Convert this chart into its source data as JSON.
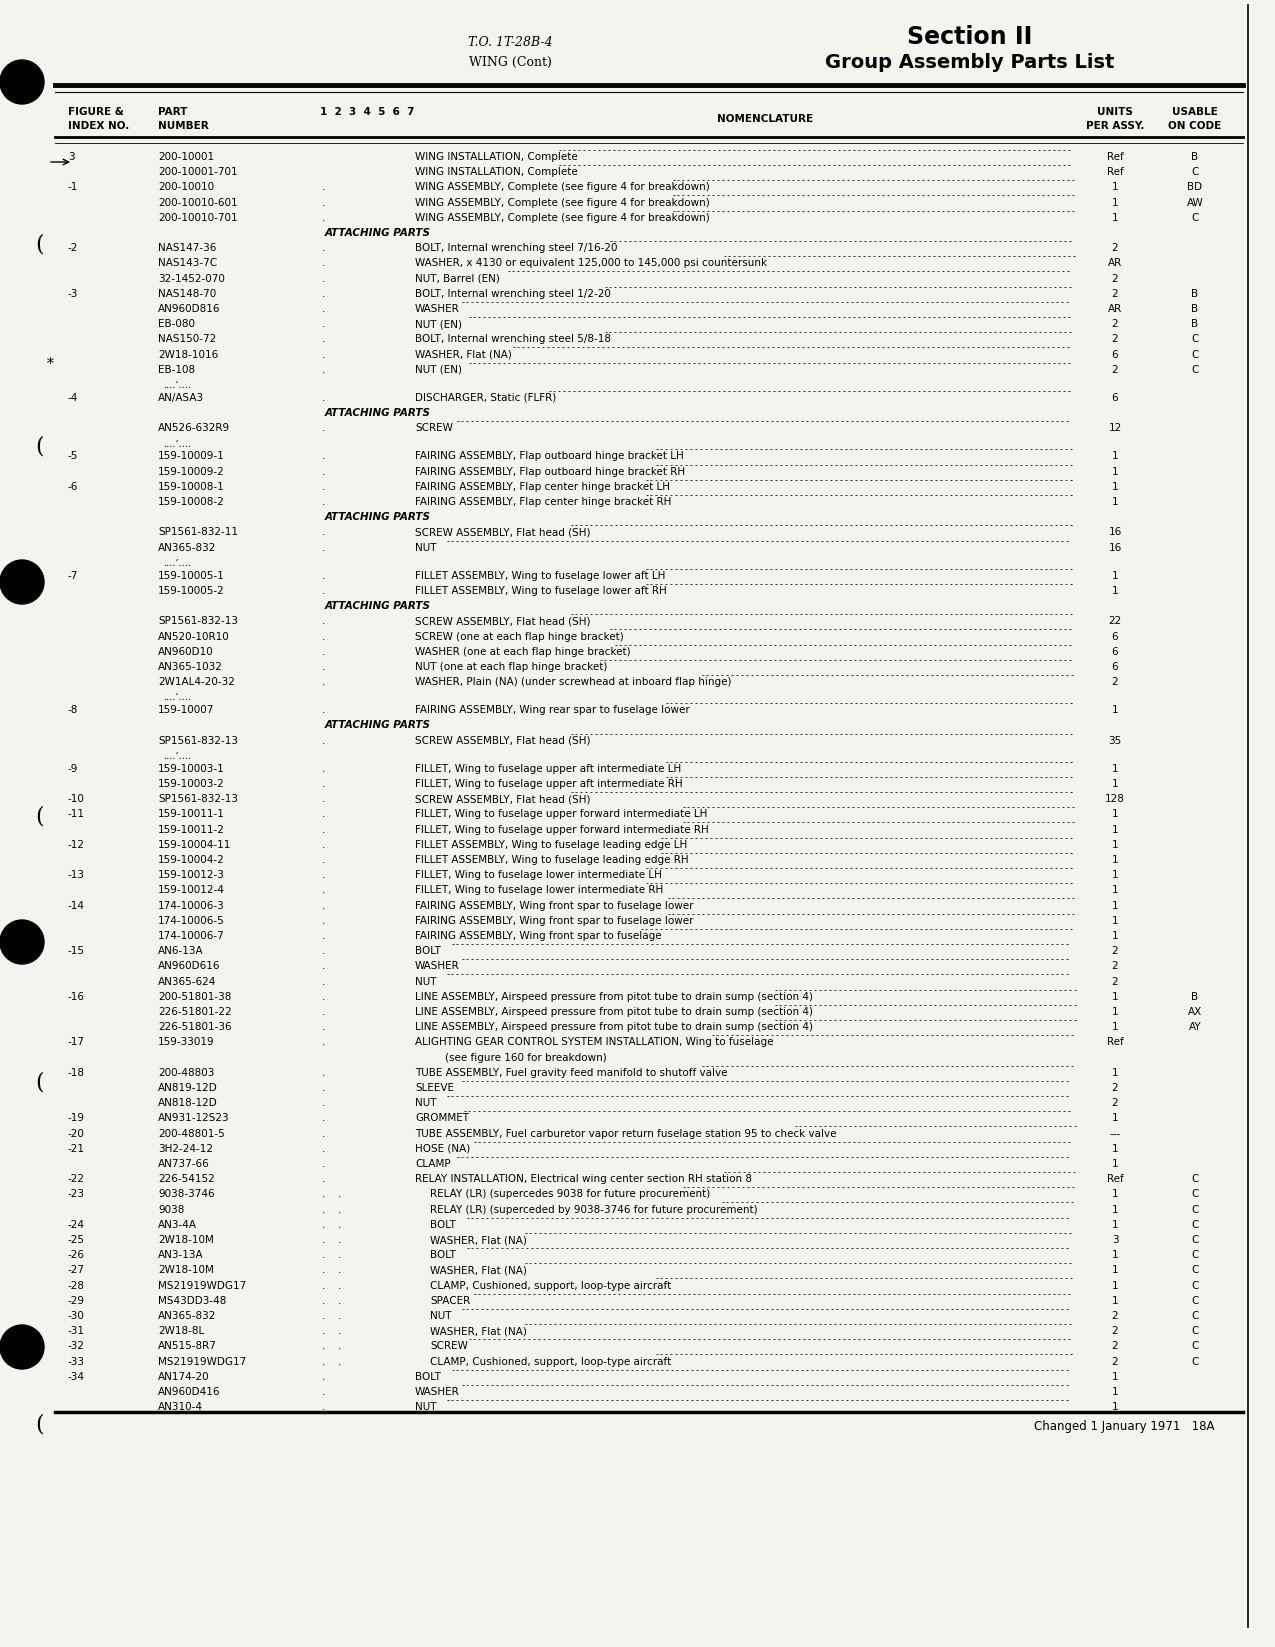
{
  "bg_color": "#f4f4ef",
  "header_to": "T.O. 1T-28B-4",
  "header_wing": "WING (Cont)",
  "header_section": "Section II",
  "header_group": "Group Assembly Parts List",
  "footer_text": "Changed 1 January 1971   18A",
  "rows": [
    {
      "fig": "3",
      "part": "200-10001",
      "ind": 0,
      "nom": "WING INSTALLATION, Complete",
      "units": "Ref",
      "code": "B",
      "type": "data"
    },
    {
      "fig": "",
      "part": "200-10001-701",
      "ind": 0,
      "nom": "WING INSTALLATION, Complete",
      "units": "Ref",
      "code": "C",
      "type": "data"
    },
    {
      "fig": "-1",
      "part": "200-10010",
      "ind": 1,
      "nom": "WING ASSEMBLY, Complete (see figure 4 for breakdown)",
      "units": "1",
      "code": "BD",
      "type": "data"
    },
    {
      "fig": "",
      "part": "200-10010-601",
      "ind": 1,
      "nom": "WING ASSEMBLY, Complete (see figure 4 for breakdown)",
      "units": "1",
      "code": "AW",
      "type": "data"
    },
    {
      "fig": "",
      "part": "200-10010-701",
      "ind": 1,
      "nom": "WING ASSEMBLY, Complete (see figure 4 for breakdown)",
      "units": "1",
      "code": "C",
      "type": "data"
    },
    {
      "fig": "",
      "part": "",
      "ind": 0,
      "nom": "ATTACHING PARTS",
      "units": "",
      "code": "",
      "type": "ap"
    },
    {
      "fig": "-2",
      "part": "NAS147-36",
      "ind": 1,
      "nom": "BOLT, Internal wrenching steel 7/16-20",
      "units": "2",
      "code": "",
      "type": "data"
    },
    {
      "fig": "",
      "part": "NAS143-7C",
      "ind": 1,
      "nom": "WASHER, x 4130 or equivalent 125,000 to 145,000 psi countersunk",
      "units": "AR",
      "code": "",
      "type": "data"
    },
    {
      "fig": "",
      "part": "32-1452-070",
      "ind": 1,
      "nom": "NUT, Barrel (EN)",
      "units": "2",
      "code": "",
      "type": "data"
    },
    {
      "fig": "-3",
      "part": "NAS148-70",
      "ind": 1,
      "nom": "BOLT, Internal wrenching steel 1/2-20",
      "units": "2",
      "code": "B",
      "type": "data"
    },
    {
      "fig": "",
      "part": "AN960D816",
      "ind": 1,
      "nom": "WASHER",
      "units": "AR",
      "code": "B",
      "type": "data"
    },
    {
      "fig": "",
      "part": "EB-080",
      "ind": 1,
      "nom": "NUT (EN)",
      "units": "2",
      "code": "B",
      "type": "data"
    },
    {
      "fig": "",
      "part": "NAS150-72",
      "ind": 1,
      "nom": "BOLT, Internal wrenching steel 5/8-18",
      "units": "2",
      "code": "C",
      "type": "data"
    },
    {
      "fig": "",
      "part": "2W18-1016",
      "ind": 1,
      "nom": "WASHER, Flat (NA)",
      "units": "6",
      "code": "C",
      "type": "data"
    },
    {
      "fig": "",
      "part": "EB-108",
      "ind": 1,
      "nom": "NUT (EN)",
      "units": "2",
      "code": "C",
      "type": "data"
    },
    {
      "fig": "",
      "part": "",
      "ind": 0,
      "nom": "",
      "units": "",
      "code": "",
      "type": "sep"
    },
    {
      "fig": "-4",
      "part": "AN/ASA3",
      "ind": 1,
      "nom": "DISCHARGER, Static (FLFR)",
      "units": "6",
      "code": "",
      "type": "data"
    },
    {
      "fig": "",
      "part": "",
      "ind": 0,
      "nom": "ATTACHING PARTS",
      "units": "",
      "code": "",
      "type": "ap"
    },
    {
      "fig": "",
      "part": "AN526-632R9",
      "ind": 1,
      "nom": "SCREW",
      "units": "12",
      "code": "",
      "type": "data"
    },
    {
      "fig": "",
      "part": "",
      "ind": 0,
      "nom": "",
      "units": "",
      "code": "",
      "type": "sep"
    },
    {
      "fig": "-5",
      "part": "159-10009-1",
      "ind": 1,
      "nom": "FAIRING ASSEMBLY, Flap outboard hinge bracket LH",
      "units": "1",
      "code": "",
      "type": "data"
    },
    {
      "fig": "",
      "part": "159-10009-2",
      "ind": 1,
      "nom": "FAIRING ASSEMBLY, Flap outboard hinge bracket RH",
      "units": "1",
      "code": "",
      "type": "data"
    },
    {
      "fig": "-6",
      "part": "159-10008-1",
      "ind": 1,
      "nom": "FAIRING ASSEMBLY, Flap center hinge bracket LH",
      "units": "1",
      "code": "",
      "type": "data"
    },
    {
      "fig": "",
      "part": "159-10008-2",
      "ind": 1,
      "nom": "FAIRING ASSEMBLY, Flap center hinge bracket RH",
      "units": "1",
      "code": "",
      "type": "data"
    },
    {
      "fig": "",
      "part": "",
      "ind": 0,
      "nom": "ATTACHING PARTS",
      "units": "",
      "code": "",
      "type": "ap"
    },
    {
      "fig": "",
      "part": "SP1561-832-11",
      "ind": 1,
      "nom": "SCREW ASSEMBLY, Flat head (SH)",
      "units": "16",
      "code": "",
      "type": "data"
    },
    {
      "fig": "",
      "part": "AN365-832",
      "ind": 1,
      "nom": "NUT",
      "units": "16",
      "code": "",
      "type": "data"
    },
    {
      "fig": "",
      "part": "",
      "ind": 0,
      "nom": "",
      "units": "",
      "code": "",
      "type": "sep"
    },
    {
      "fig": "-7",
      "part": "159-10005-1",
      "ind": 1,
      "nom": "FILLET ASSEMBLY, Wing to fuselage lower aft LH",
      "units": "1",
      "code": "",
      "type": "data"
    },
    {
      "fig": "",
      "part": "159-10005-2",
      "ind": 1,
      "nom": "FILLET ASSEMBLY, Wing to fuselage lower aft RH",
      "units": "1",
      "code": "",
      "type": "data"
    },
    {
      "fig": "",
      "part": "",
      "ind": 0,
      "nom": "ATTACHING PARTS",
      "units": "",
      "code": "",
      "type": "ap"
    },
    {
      "fig": "",
      "part": "SP1561-832-13",
      "ind": 1,
      "nom": "SCREW ASSEMBLY, Flat head (SH)",
      "units": "22",
      "code": "",
      "type": "data"
    },
    {
      "fig": "",
      "part": "AN520-10R10",
      "ind": 1,
      "nom": "SCREW (one at each flap hinge bracket)",
      "units": "6",
      "code": "",
      "type": "data"
    },
    {
      "fig": "",
      "part": "AN960D10",
      "ind": 1,
      "nom": "WASHER (one at each flap hinge bracket)",
      "units": "6",
      "code": "",
      "type": "data"
    },
    {
      "fig": "",
      "part": "AN365-1032",
      "ind": 1,
      "nom": "NUT (one at each flap hinge bracket)",
      "units": "6",
      "code": "",
      "type": "data"
    },
    {
      "fig": "",
      "part": "2W1AL4-20-32",
      "ind": 1,
      "nom": "WASHER, Plain (NA) (under screwhead at inboard flap hinge)",
      "units": "2",
      "code": "",
      "type": "data"
    },
    {
      "fig": "",
      "part": "",
      "ind": 0,
      "nom": "",
      "units": "",
      "code": "",
      "type": "sep"
    },
    {
      "fig": "-8",
      "part": "159-10007",
      "ind": 1,
      "nom": "FAIRING ASSEMBLY, Wing rear spar to fuselage lower",
      "units": "1",
      "code": "",
      "type": "data"
    },
    {
      "fig": "",
      "part": "",
      "ind": 0,
      "nom": "ATTACHING PARTS",
      "units": "",
      "code": "",
      "type": "ap"
    },
    {
      "fig": "",
      "part": "SP1561-832-13",
      "ind": 1,
      "nom": "SCREW ASSEMBLY, Flat head (SH)",
      "units": "35",
      "code": "",
      "type": "data"
    },
    {
      "fig": "",
      "part": "",
      "ind": 0,
      "nom": "",
      "units": "",
      "code": "",
      "type": "sep"
    },
    {
      "fig": "-9",
      "part": "159-10003-1",
      "ind": 1,
      "nom": "FILLET, Wing to fuselage upper aft intermediate LH",
      "units": "1",
      "code": "",
      "type": "data"
    },
    {
      "fig": "",
      "part": "159-10003-2",
      "ind": 1,
      "nom": "FILLET, Wing to fuselage upper aft intermediate RH",
      "units": "1",
      "code": "",
      "type": "data"
    },
    {
      "fig": "-10",
      "part": "SP1561-832-13",
      "ind": 1,
      "nom": "SCREW ASSEMBLY, Flat head (SH)",
      "units": "128",
      "code": "",
      "type": "data"
    },
    {
      "fig": "-11",
      "part": "159-10011-1",
      "ind": 1,
      "nom": "FILLET, Wing to fuselage upper forward intermediate LH",
      "units": "1",
      "code": "",
      "type": "data"
    },
    {
      "fig": "",
      "part": "159-10011-2",
      "ind": 1,
      "nom": "FILLET, Wing to fuselage upper forward intermediate RH",
      "units": "1",
      "code": "",
      "type": "data"
    },
    {
      "fig": "-12",
      "part": "159-10004-11",
      "ind": 1,
      "nom": "FILLET ASSEMBLY, Wing to fuselage leading edge LH",
      "units": "1",
      "code": "",
      "type": "data"
    },
    {
      "fig": "",
      "part": "159-10004-2",
      "ind": 1,
      "nom": "FILLET ASSEMBLY, Wing to fuselage leading edge RH",
      "units": "1",
      "code": "",
      "type": "data"
    },
    {
      "fig": "-13",
      "part": "159-10012-3",
      "ind": 1,
      "nom": "FILLET, Wing to fuselage lower intermediate LH",
      "units": "1",
      "code": "",
      "type": "data"
    },
    {
      "fig": "",
      "part": "159-10012-4",
      "ind": 1,
      "nom": "FILLET, Wing to fuselage lower intermediate RH",
      "units": "1",
      "code": "",
      "type": "data"
    },
    {
      "fig": "-14",
      "part": "174-10006-3",
      "ind": 1,
      "nom": "FAIRING ASSEMBLY, Wing front spar to fuselage lower",
      "units": "1",
      "code": "",
      "type": "data"
    },
    {
      "fig": "",
      "part": "174-10006-5",
      "ind": 1,
      "nom": "FAIRING ASSEMBLY, Wing front spar to fuselage lower",
      "units": "1",
      "code": "",
      "type": "data"
    },
    {
      "fig": "",
      "part": "174-10006-7",
      "ind": 1,
      "nom": "FAIRING ASSEMBLY, Wing front spar to fuselage",
      "units": "1",
      "code": "",
      "type": "data"
    },
    {
      "fig": "-15",
      "part": "AN6-13A",
      "ind": 1,
      "nom": "BOLT",
      "units": "2",
      "code": "",
      "type": "data"
    },
    {
      "fig": "",
      "part": "AN960D616",
      "ind": 1,
      "nom": "WASHER",
      "units": "2",
      "code": "",
      "type": "data"
    },
    {
      "fig": "",
      "part": "AN365-624",
      "ind": 1,
      "nom": "NUT",
      "units": "2",
      "code": "",
      "type": "data"
    },
    {
      "fig": "-16",
      "part": "200-51801-38",
      "ind": 1,
      "nom": "LINE ASSEMBLY, Airspeed pressure from pitot tube to drain sump (section 4)",
      "units": "1",
      "code": "B",
      "type": "data"
    },
    {
      "fig": "",
      "part": "226-51801-22",
      "ind": 1,
      "nom": "LINE ASSEMBLY, Airspeed pressure from pitot tube to drain sump (section 4)",
      "units": "1",
      "code": "AX",
      "type": "data"
    },
    {
      "fig": "",
      "part": "226-51801-36",
      "ind": 1,
      "nom": "LINE ASSEMBLY, Airspeed pressure from pitot tube to drain sump (section 4)",
      "units": "1",
      "code": "AY",
      "type": "data"
    },
    {
      "fig": "-17",
      "part": "159-33019",
      "ind": 1,
      "nom": "ALIGHTING GEAR CONTROL SYSTEM INSTALLATION, Wing to fuselage",
      "units": "Ref",
      "code": "",
      "type": "data"
    },
    {
      "fig": "",
      "part": "",
      "ind": 1,
      "nom": "(see figure 160 for breakdown)",
      "units": "",
      "code": "",
      "type": "cont"
    },
    {
      "fig": "-18",
      "part": "200-48803",
      "ind": 1,
      "nom": "TUBE ASSEMBLY, Fuel gravity feed manifold to shutoff valve",
      "units": "1",
      "code": "",
      "type": "data"
    },
    {
      "fig": "",
      "part": "AN819-12D",
      "ind": 1,
      "nom": "SLEEVE",
      "units": "2",
      "code": "",
      "type": "data"
    },
    {
      "fig": "",
      "part": "AN818-12D",
      "ind": 1,
      "nom": "NUT",
      "units": "2",
      "code": "",
      "type": "data"
    },
    {
      "fig": "-19",
      "part": "AN931-12S23",
      "ind": 1,
      "nom": "GROMMET",
      "units": "1",
      "code": "",
      "type": "data"
    },
    {
      "fig": "-20",
      "part": "200-48801-5",
      "ind": 1,
      "nom": "TUBE ASSEMBLY, Fuel carburetor vapor return fuselage station 95 to check valve",
      "units": "---",
      "code": "",
      "type": "data"
    },
    {
      "fig": "-21",
      "part": "3H2-24-12",
      "ind": 1,
      "nom": "HOSE (NA)",
      "units": "1",
      "code": "",
      "type": "data"
    },
    {
      "fig": "",
      "part": "AN737-66",
      "ind": 1,
      "nom": "CLAMP",
      "units": "1",
      "code": "",
      "type": "data"
    },
    {
      "fig": "-22",
      "part": "226-54152",
      "ind": 1,
      "nom": "RELAY INSTALLATION, Electrical wing center section RH station 8",
      "units": "Ref",
      "code": "C",
      "type": "data"
    },
    {
      "fig": "-23",
      "part": "9038-3746",
      "ind": 2,
      "nom": "RELAY (LR) (supercedes 9038 for future procurement)",
      "units": "1",
      "code": "C",
      "type": "data"
    },
    {
      "fig": "",
      "part": "9038",
      "ind": 2,
      "nom": "RELAY (LR) (superceded by 9038-3746 for future procurement)",
      "units": "1",
      "code": "C",
      "type": "data"
    },
    {
      "fig": "-24",
      "part": "AN3-4A",
      "ind": 2,
      "nom": "BOLT",
      "units": "1",
      "code": "C",
      "type": "data"
    },
    {
      "fig": "-25",
      "part": "2W18-10M",
      "ind": 2,
      "nom": "WASHER, Flat (NA)",
      "units": "3",
      "code": "C",
      "type": "data"
    },
    {
      "fig": "-26",
      "part": "AN3-13A",
      "ind": 2,
      "nom": "BOLT",
      "units": "1",
      "code": "C",
      "type": "data"
    },
    {
      "fig": "-27",
      "part": "2W18-10M",
      "ind": 2,
      "nom": "WASHER, Flat (NA)",
      "units": "1",
      "code": "C",
      "type": "data"
    },
    {
      "fig": "-28",
      "part": "MS21919WDG17",
      "ind": 2,
      "nom": "CLAMP, Cushioned, support, loop-type aircraft",
      "units": "1",
      "code": "C",
      "type": "data"
    },
    {
      "fig": "-29",
      "part": "MS43DD3-48",
      "ind": 2,
      "nom": "SPACER",
      "units": "1",
      "code": "C",
      "type": "data"
    },
    {
      "fig": "-30",
      "part": "AN365-832",
      "ind": 2,
      "nom": "NUT",
      "units": "2",
      "code": "C",
      "type": "data"
    },
    {
      "fig": "-31",
      "part": "2W18-8L",
      "ind": 2,
      "nom": "WASHER, Flat (NA)",
      "units": "2",
      "code": "C",
      "type": "data"
    },
    {
      "fig": "-32",
      "part": "AN515-8R7",
      "ind": 2,
      "nom": "SCREW",
      "units": "2",
      "code": "C",
      "type": "data"
    },
    {
      "fig": "-33",
      "part": "MS21919WDG17",
      "ind": 2,
      "nom": "CLAMP, Cushioned, support, loop-type aircraft",
      "units": "2",
      "code": "C",
      "type": "data"
    },
    {
      "fig": "-34",
      "part": "AN174-20",
      "ind": 1,
      "nom": "BOLT",
      "units": "1",
      "code": "",
      "type": "data"
    },
    {
      "fig": "",
      "part": "AN960D416",
      "ind": 1,
      "nom": "WASHER",
      "units": "1",
      "code": "",
      "type": "data"
    },
    {
      "fig": "",
      "part": "AN310-4",
      "ind": 1,
      "nom": "NUT",
      "units": "1",
      "code": "",
      "type": "data"
    }
  ]
}
